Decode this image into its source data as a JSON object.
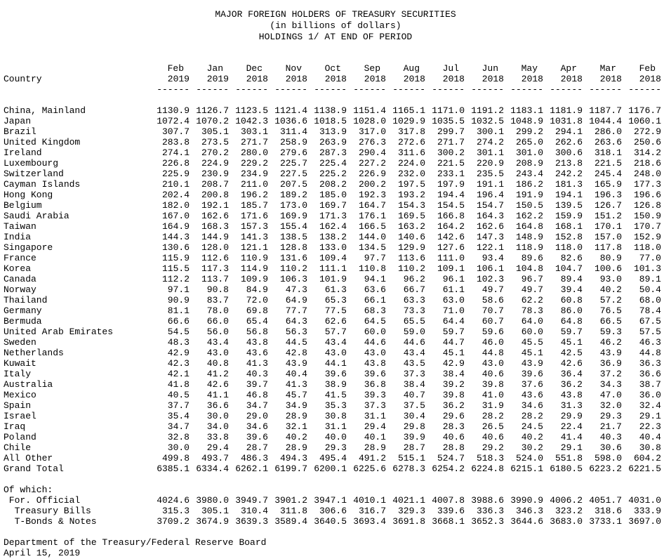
{
  "title": {
    "line1": "MAJOR FOREIGN HOLDERS OF TREASURY SECURITIES",
    "line2": "(in billions of dollars)",
    "line3": "HOLDINGS 1/ AT END OF PERIOD"
  },
  "table": {
    "country_header": "Country",
    "column_underline": "------",
    "columns": [
      {
        "month": "Feb",
        "year": "2019"
      },
      {
        "month": "Jan",
        "year": "2019"
      },
      {
        "month": "Dec",
        "year": "2018"
      },
      {
        "month": "Nov",
        "year": "2018"
      },
      {
        "month": "Oct",
        "year": "2018"
      },
      {
        "month": "Sep",
        "year": "2018"
      },
      {
        "month": "Aug",
        "year": "2018"
      },
      {
        "month": "Jul",
        "year": "2018"
      },
      {
        "month": "Jun",
        "year": "2018"
      },
      {
        "month": "May",
        "year": "2018"
      },
      {
        "month": "Apr",
        "year": "2018"
      },
      {
        "month": "Mar",
        "year": "2018"
      },
      {
        "month": "Feb",
        "year": "2018"
      }
    ],
    "rows": [
      {
        "country": "China, Mainland",
        "values": [
          "1130.9",
          "1126.7",
          "1123.5",
          "1121.4",
          "1138.9",
          "1151.4",
          "1165.1",
          "1171.0",
          "1191.2",
          "1183.1",
          "1181.9",
          "1187.7",
          "1176.7"
        ]
      },
      {
        "country": "Japan",
        "values": [
          "1072.4",
          "1070.2",
          "1042.3",
          "1036.6",
          "1018.5",
          "1028.0",
          "1029.9",
          "1035.5",
          "1032.5",
          "1048.9",
          "1031.8",
          "1044.4",
          "1060.1"
        ]
      },
      {
        "country": "Brazil",
        "values": [
          "307.7",
          "305.1",
          "303.1",
          "311.4",
          "313.9",
          "317.0",
          "317.8",
          "299.7",
          "300.1",
          "299.2",
          "294.1",
          "286.0",
          "272.9"
        ]
      },
      {
        "country": "United Kingdom",
        "values": [
          "283.8",
          "273.5",
          "271.7",
          "258.9",
          "263.9",
          "276.3",
          "272.6",
          "271.7",
          "274.2",
          "265.0",
          "262.6",
          "263.6",
          "250.6"
        ]
      },
      {
        "country": "Ireland",
        "values": [
          "274.1",
          "270.2",
          "280.0",
          "279.6",
          "287.3",
          "290.4",
          "311.6",
          "300.2",
          "301.1",
          "301.0",
          "300.6",
          "318.1",
          "314.2"
        ]
      },
      {
        "country": "Luxembourg",
        "values": [
          "226.8",
          "224.9",
          "229.2",
          "225.7",
          "225.4",
          "227.2",
          "224.0",
          "221.5",
          "220.9",
          "208.9",
          "213.8",
          "221.5",
          "218.6"
        ]
      },
      {
        "country": "Switzerland",
        "values": [
          "225.9",
          "230.9",
          "234.9",
          "227.5",
          "225.2",
          "226.9",
          "232.0",
          "233.1",
          "235.5",
          "243.4",
          "242.2",
          "245.4",
          "248.0"
        ]
      },
      {
        "country": "Cayman Islands",
        "values": [
          "210.1",
          "208.7",
          "211.0",
          "207.5",
          "208.2",
          "200.2",
          "197.5",
          "197.9",
          "191.1",
          "186.2",
          "181.3",
          "165.9",
          "177.3"
        ]
      },
      {
        "country": "Hong Kong",
        "values": [
          "202.4",
          "200.8",
          "196.2",
          "189.2",
          "185.0",
          "192.3",
          "193.2",
          "194.4",
          "196.4",
          "191.9",
          "194.1",
          "196.3",
          "196.6"
        ]
      },
      {
        "country": "Belgium",
        "values": [
          "182.0",
          "192.1",
          "185.7",
          "173.0",
          "169.7",
          "164.7",
          "154.3",
          "154.5",
          "154.7",
          "150.5",
          "139.5",
          "126.7",
          "126.8"
        ]
      },
      {
        "country": "Saudi Arabia",
        "values": [
          "167.0",
          "162.6",
          "171.6",
          "169.9",
          "171.3",
          "176.1",
          "169.5",
          "166.8",
          "164.3",
          "162.2",
          "159.9",
          "151.2",
          "150.9"
        ]
      },
      {
        "country": "Taiwan",
        "values": [
          "164.9",
          "168.3",
          "157.3",
          "155.4",
          "162.4",
          "166.5",
          "163.2",
          "164.2",
          "162.6",
          "164.8",
          "168.1",
          "170.1",
          "170.7"
        ]
      },
      {
        "country": "India",
        "values": [
          "144.3",
          "144.9",
          "141.3",
          "138.5",
          "138.2",
          "144.0",
          "140.6",
          "142.6",
          "147.3",
          "148.9",
          "152.8",
          "157.0",
          "152.9"
        ]
      },
      {
        "country": "Singapore",
        "values": [
          "130.6",
          "128.0",
          "121.1",
          "128.8",
          "133.0",
          "134.5",
          "129.9",
          "127.6",
          "122.1",
          "118.9",
          "118.0",
          "117.8",
          "118.0"
        ]
      },
      {
        "country": "France",
        "values": [
          "115.9",
          "112.6",
          "110.9",
          "131.6",
          "109.4",
          "97.7",
          "113.6",
          "111.0",
          "93.4",
          "89.6",
          "82.6",
          "80.9",
          "77.0"
        ]
      },
      {
        "country": "Korea",
        "values": [
          "115.5",
          "117.3",
          "114.9",
          "110.2",
          "111.1",
          "110.8",
          "110.2",
          "109.1",
          "106.1",
          "104.8",
          "104.7",
          "100.6",
          "101.3"
        ]
      },
      {
        "country": "Canada",
        "values": [
          "112.2",
          "113.7",
          "109.9",
          "106.3",
          "101.9",
          "94.1",
          "96.2",
          "96.1",
          "102.3",
          "96.7",
          "89.4",
          "93.0",
          "89.1"
        ]
      },
      {
        "country": "Norway",
        "values": [
          "97.1",
          "90.8",
          "84.9",
          "47.3",
          "61.3",
          "63.6",
          "66.7",
          "61.1",
          "49.7",
          "49.7",
          "39.4",
          "40.2",
          "50.4"
        ]
      },
      {
        "country": "Thailand",
        "values": [
          "90.9",
          "83.7",
          "72.0",
          "64.9",
          "65.3",
          "66.1",
          "63.3",
          "63.0",
          "58.6",
          "62.2",
          "60.8",
          "57.2",
          "68.0"
        ]
      },
      {
        "country": "Germany",
        "values": [
          "81.1",
          "78.0",
          "69.8",
          "77.7",
          "77.5",
          "68.3",
          "73.3",
          "71.0",
          "70.7",
          "78.3",
          "86.0",
          "76.5",
          "78.4"
        ]
      },
      {
        "country": "Bermuda",
        "values": [
          "66.6",
          "66.0",
          "65.4",
          "64.3",
          "62.6",
          "64.5",
          "65.5",
          "64.4",
          "60.7",
          "64.0",
          "64.8",
          "66.5",
          "67.5"
        ]
      },
      {
        "country": "United Arab Emirates",
        "values": [
          "54.5",
          "56.0",
          "56.8",
          "56.3",
          "57.7",
          "60.0",
          "59.0",
          "59.7",
          "59.6",
          "60.0",
          "59.7",
          "59.3",
          "57.5"
        ]
      },
      {
        "country": "Sweden",
        "values": [
          "48.3",
          "43.4",
          "43.8",
          "44.5",
          "43.4",
          "44.6",
          "44.6",
          "44.7",
          "46.0",
          "45.5",
          "45.1",
          "46.2",
          "46.3"
        ]
      },
      {
        "country": "Netherlands",
        "values": [
          "42.9",
          "43.0",
          "43.6",
          "42.8",
          "43.0",
          "43.0",
          "43.4",
          "45.1",
          "44.8",
          "45.1",
          "42.5",
          "43.9",
          "44.8"
        ]
      },
      {
        "country": "Kuwait",
        "values": [
          "42.3",
          "40.8",
          "41.3",
          "43.9",
          "44.1",
          "43.8",
          "43.5",
          "42.9",
          "43.0",
          "43.9",
          "42.6",
          "36.9",
          "36.3"
        ]
      },
      {
        "country": "Italy",
        "values": [
          "42.1",
          "41.2",
          "40.3",
          "40.4",
          "39.6",
          "39.6",
          "37.3",
          "38.4",
          "40.6",
          "39.6",
          "36.4",
          "37.2",
          "36.6"
        ]
      },
      {
        "country": "Australia",
        "values": [
          "41.8",
          "42.6",
          "39.7",
          "41.3",
          "38.9",
          "36.8",
          "38.4",
          "39.2",
          "39.8",
          "37.6",
          "36.2",
          "34.3",
          "38.7"
        ]
      },
      {
        "country": "Mexico",
        "values": [
          "40.5",
          "41.1",
          "46.8",
          "45.7",
          "41.5",
          "39.3",
          "40.7",
          "39.8",
          "41.0",
          "43.6",
          "43.8",
          "47.0",
          "36.0"
        ]
      },
      {
        "country": "Spain",
        "values": [
          "37.7",
          "36.6",
          "34.7",
          "34.9",
          "35.3",
          "37.3",
          "37.5",
          "36.2",
          "31.9",
          "34.6",
          "31.3",
          "32.0",
          "32.4"
        ]
      },
      {
        "country": "Israel",
        "values": [
          "35.4",
          "30.0",
          "29.0",
          "28.9",
          "30.8",
          "31.1",
          "30.4",
          "29.6",
          "28.2",
          "28.2",
          "29.9",
          "29.3",
          "29.1"
        ]
      },
      {
        "country": "Iraq",
        "values": [
          "34.7",
          "34.0",
          "34.6",
          "32.1",
          "31.1",
          "29.4",
          "29.8",
          "28.3",
          "26.5",
          "24.5",
          "22.4",
          "21.7",
          "22.3"
        ]
      },
      {
        "country": "Poland",
        "values": [
          "32.8",
          "33.8",
          "39.6",
          "40.2",
          "40.0",
          "40.1",
          "39.9",
          "40.6",
          "40.6",
          "40.2",
          "41.4",
          "40.3",
          "40.4"
        ]
      },
      {
        "country": "Chile",
        "values": [
          "30.0",
          "29.4",
          "28.7",
          "28.9",
          "29.3",
          "28.9",
          "28.7",
          "28.8",
          "29.2",
          "30.2",
          "29.1",
          "30.6",
          "30.8"
        ]
      },
      {
        "country": "All Other",
        "values": [
          "499.8",
          "493.7",
          "486.3",
          "494.3",
          "495.4",
          "491.2",
          "515.1",
          "524.7",
          "518.3",
          "524.0",
          "551.8",
          "598.0",
          "604.2"
        ]
      },
      {
        "country": "Grand Total",
        "values": [
          "6385.1",
          "6334.4",
          "6262.1",
          "6199.7",
          "6200.1",
          "6225.6",
          "6278.3",
          "6254.2",
          "6224.8",
          "6215.1",
          "6180.5",
          "6223.2",
          "6221.5"
        ]
      }
    ],
    "of_which": {
      "label": "Of which:",
      "rows": [
        {
          "label": "For. Official",
          "indent": 1,
          "values": [
            "4024.6",
            "3980.0",
            "3949.7",
            "3901.2",
            "3947.1",
            "4010.1",
            "4021.1",
            "4007.8",
            "3988.6",
            "3990.9",
            "4006.2",
            "4051.7",
            "4031.0"
          ]
        },
        {
          "label": "Treasury Bills",
          "indent": 2,
          "values": [
            "315.3",
            "305.1",
            "310.4",
            "311.8",
            "306.6",
            "316.7",
            "329.3",
            "339.6",
            "336.3",
            "346.3",
            "323.2",
            "318.6",
            "333.9"
          ]
        },
        {
          "label": "T-Bonds & Notes",
          "indent": 2,
          "values": [
            "3709.2",
            "3674.9",
            "3639.3",
            "3589.4",
            "3640.5",
            "3693.4",
            "3691.8",
            "3668.1",
            "3652.3",
            "3644.6",
            "3683.0",
            "3733.1",
            "3697.0"
          ]
        }
      ]
    }
  },
  "footer": {
    "source": "Department of the Treasury/Federal Reserve Board",
    "date": "April 15, 2019"
  },
  "colors": {
    "text": "#000000",
    "background": "#ffffff"
  }
}
